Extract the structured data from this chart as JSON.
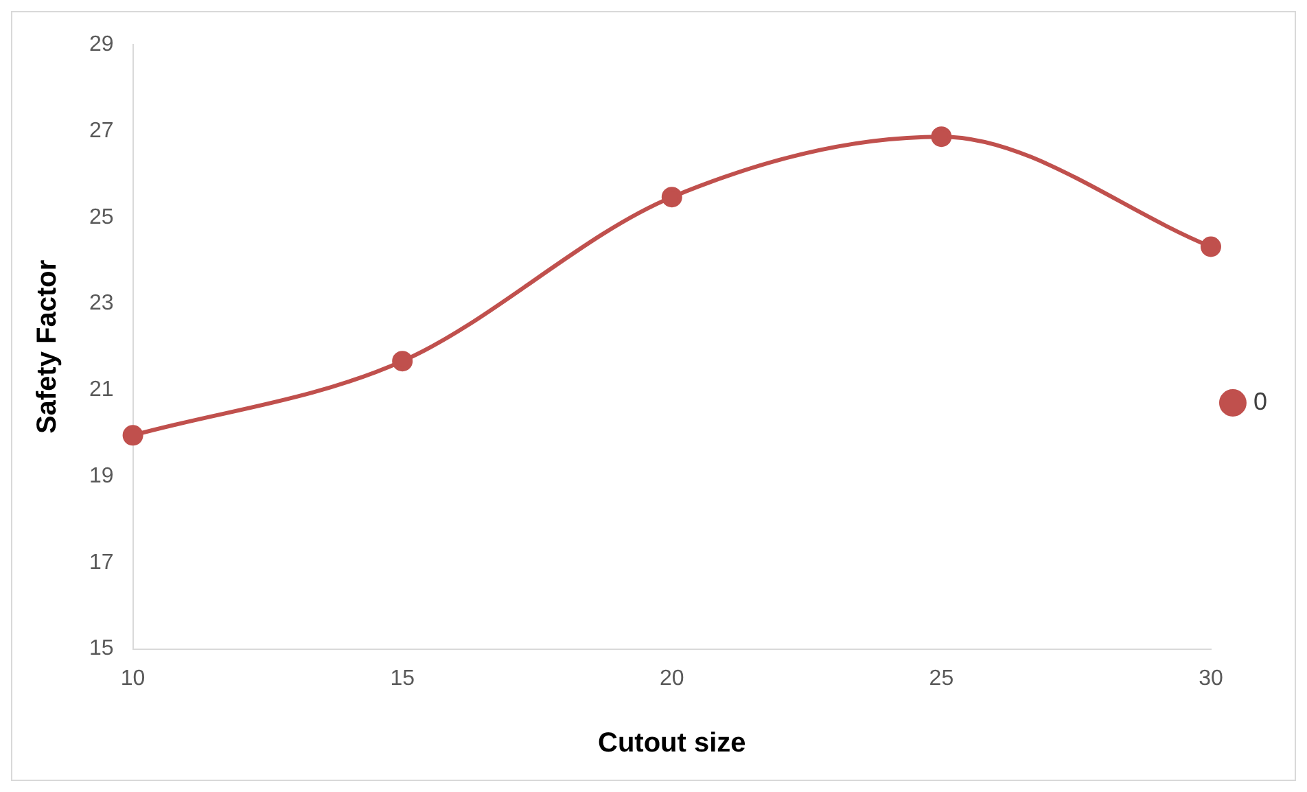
{
  "chart_data": {
    "type": "line",
    "xlabel": "Cutout size",
    "ylabel": "Safety Factor",
    "x": [
      10,
      15,
      20,
      25,
      30
    ],
    "series": [
      {
        "name": "0",
        "color": "#c0504d",
        "values": [
          19.95,
          21.67,
          25.47,
          26.87,
          24.32
        ]
      }
    ],
    "xlim": [
      10,
      30
    ],
    "xticks": [
      10,
      15,
      20,
      25,
      30
    ],
    "ylim": [
      15,
      29
    ],
    "yticks": [
      15,
      17,
      19,
      21,
      23,
      25,
      27,
      29
    ],
    "grid": false,
    "legend": "right",
    "marker": "circle",
    "line_style": "solid"
  }
}
